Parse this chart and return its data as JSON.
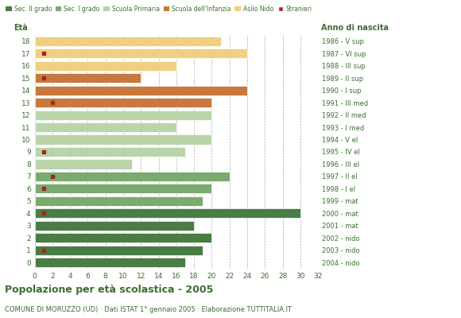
{
  "ages": [
    18,
    17,
    16,
    15,
    14,
    13,
    12,
    11,
    10,
    9,
    8,
    7,
    6,
    5,
    4,
    3,
    2,
    1,
    0
  ],
  "anno_nascita": [
    "1986 - V sup",
    "1987 - VI sup",
    "1988 - III sup",
    "1989 - II sup",
    "1990 - I sup",
    "1991 - III med",
    "1992 - II med",
    "1993 - I med",
    "1994 - V el",
    "1995 - IV el",
    "1996 - III el",
    "1997 - II el",
    "1998 - I el",
    "1999 - mat",
    "2000 - mat",
    "2001 - mat",
    "2002 - nido",
    "2003 - nido",
    "2004 - nido"
  ],
  "bar_values": [
    17,
    19,
    20,
    18,
    30,
    19,
    20,
    22,
    11,
    17,
    20,
    16,
    20,
    20,
    24,
    12,
    16,
    24,
    21
  ],
  "stranieri": [
    0,
    1,
    0,
    0,
    1,
    0,
    1,
    2,
    0,
    1,
    0,
    0,
    0,
    2,
    0,
    1,
    0,
    1,
    0
  ],
  "bar_colors": [
    "#4a7c45",
    "#4a7c45",
    "#4a7c45",
    "#4a7c45",
    "#4a7c45",
    "#7aab6e",
    "#7aab6e",
    "#7aab6e",
    "#b8d4a8",
    "#b8d4a8",
    "#b8d4a8",
    "#b8d4a8",
    "#b8d4a8",
    "#c8783c",
    "#c8783c",
    "#c8783c",
    "#f0d080",
    "#f0d080",
    "#f0d080"
  ],
  "legend_labels": [
    "Sec. II grado",
    "Sec. I grado",
    "Scuola Primaria",
    "Scuola dell'Infanzia",
    "Asilo Nido",
    "Stranieri"
  ],
  "legend_colors": [
    "#4a7c45",
    "#7aab6e",
    "#b8d4a8",
    "#c8783c",
    "#f0d080",
    "#aa2222"
  ],
  "stranieri_color": "#aa2222",
  "title": "Popolazione per età scolastica - 2005",
  "subtitle": "COMUNE DI MORUZZO (UD) · Dati ISTAT 1° gennaio 2005 · Elaborazione TUTTITALIA.IT",
  "xlabel_eta": "Età",
  "xlabel_anno": "Anno di nascita",
  "xlim": [
    0,
    32
  ],
  "xticks": [
    0,
    2,
    4,
    6,
    8,
    10,
    12,
    14,
    16,
    18,
    20,
    22,
    24,
    26,
    28,
    30,
    32
  ],
  "bar_height": 0.78,
  "background_color": "#ffffff",
  "grid_color": "#aaaaaa",
  "text_color": "#3a6e30",
  "title_color": "#3a6e30",
  "subtitle_color": "#3a6e30"
}
